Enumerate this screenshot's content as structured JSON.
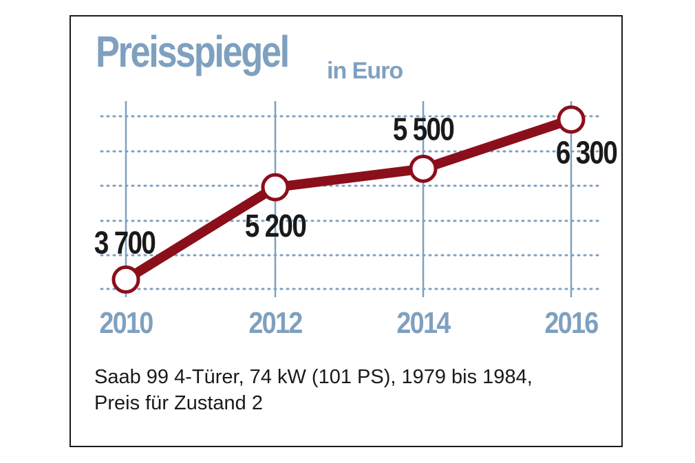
{
  "chart_data": {
    "type": "line",
    "title": "Preisspiegel",
    "subtitle": "in Euro",
    "categories": [
      "2010",
      "2012",
      "2014",
      "2016"
    ],
    "series": [
      {
        "values": [
          3700,
          5200,
          5500,
          6300
        ],
        "labels": [
          "3 700",
          "5 200",
          "5 500",
          "6 300"
        ]
      }
    ],
    "xlabel": "",
    "ylabel": "",
    "ylim": [
      3000,
      6800
    ],
    "grid": true,
    "colors": {
      "line": "#8b0f1a",
      "axis": "#7fa0bf",
      "grid": "#7fa0bf",
      "labels": "#1a1a1a"
    }
  },
  "caption": {
    "line1": "Saab 99 4-Türer, 74 kW (101 PS), 1979 bis 1984,",
    "line2": "Preis für Zustand 2"
  }
}
